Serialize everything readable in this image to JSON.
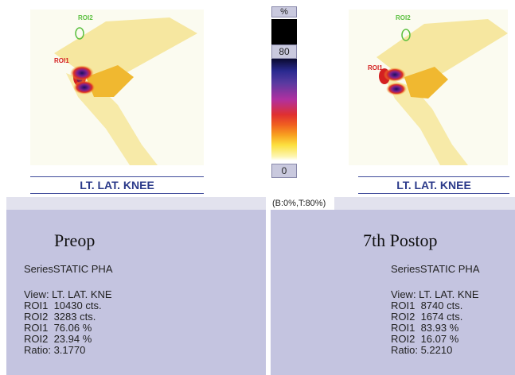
{
  "scale": {
    "unit": "%",
    "max": "80",
    "min": "0",
    "range_note": "(B:0%,T:80%)"
  },
  "left": {
    "roi1_label": "ROI1",
    "roi2_label": "ROI2",
    "view_label": "LT. LAT. KNEE",
    "heading": "Preop",
    "series": "SeriesSTATIC PHA",
    "view": "View: LT. LAT. KNE",
    "roi1_counts": "ROI1  10430 cts.",
    "roi2_counts": "ROI2  3283 cts.",
    "roi1_pct": "ROI1  76.06 %",
    "roi2_pct": "ROI2  23.94 %",
    "ratio": "Ratio: 3.1770"
  },
  "right": {
    "roi1_label": "ROI1",
    "roi2_label": "ROI2",
    "view_label": "LT. LAT. KNEE",
    "heading": "7th Postop",
    "series": "SeriesSTATIC PHA",
    "view": "View: LT. LAT. KNE",
    "roi1_counts": "ROI1  8740 cts.",
    "roi2_counts": "ROI2  1674 cts.",
    "roi1_pct": "ROI1  83.93 %",
    "roi2_pct": "ROI2  16.07 %",
    "ratio": "Ratio: 5.2210"
  },
  "colors": {
    "panel_bg": "#c4c4e0",
    "view_text": "#2b3a8a",
    "roi1": "#d42020",
    "roi2": "#5cc040"
  }
}
